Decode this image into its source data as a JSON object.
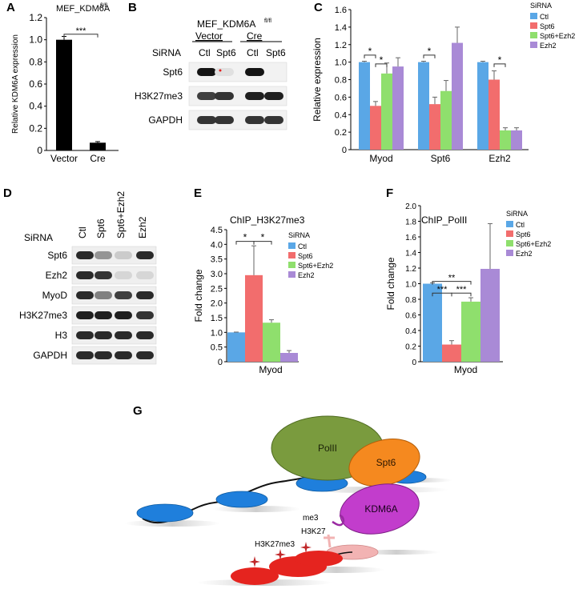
{
  "panels": {
    "A": "A",
    "B": "B",
    "C": "C",
    "D": "D",
    "E": "E",
    "F": "F",
    "G": "G"
  },
  "colors": {
    "ctl": "#5aa7e6",
    "spt6": "#f26d6d",
    "spt6_ezh2": "#8fdf6d",
    "ezh2": "#a98ad6",
    "black_bar": "#000000",
    "polII": "#7a9b3e",
    "spt6_protein": "#f5891f",
    "kdm6a": "#c23dcc",
    "nucleosome_blue": "#1f7fdc",
    "nucleosome_red": "#e5241f",
    "pink": "#f2b3b3",
    "star": "#c0282a"
  },
  "chart_data": [
    {
      "panel": "A",
      "type": "bar",
      "title": "MEF_KDM6A",
      "title_sup": "fl/fl",
      "ylabel": "Relative KDM6A expression",
      "categories": [
        "Vector",
        "Cre"
      ],
      "values": [
        1.0,
        0.07
      ],
      "errors": [
        0.03,
        0.01
      ],
      "ylim": [
        0,
        1.2
      ],
      "yticks": [
        "0",
        "0.2",
        "0.4",
        "0.6",
        "0.8",
        "1.0",
        "1.2"
      ],
      "significance": [
        {
          "from": 0,
          "to": 1,
          "label": "***"
        }
      ]
    },
    {
      "panel": "C",
      "type": "bar",
      "ylabel": "Relative expression",
      "legend_title": "SiRNA",
      "legend": "top-right",
      "categories": [
        "Myod",
        "Spt6",
        "Ezh2"
      ],
      "series": [
        {
          "name": "Ctl",
          "values": [
            1.0,
            1.0,
            1.0
          ],
          "errors": [
            0.01,
            0.01,
            0.01
          ]
        },
        {
          "name": "Spt6",
          "values": [
            0.5,
            0.52,
            0.8
          ],
          "errors": [
            0.05,
            0.08,
            0.1
          ]
        },
        {
          "name": "Spt6+Ezh2",
          "values": [
            0.87,
            0.67,
            0.22
          ],
          "errors": [
            0.12,
            0.12,
            0.03
          ]
        },
        {
          "name": "Ezh2",
          "values": [
            0.95,
            1.22,
            0.22
          ],
          "errors": [
            0.1,
            0.18,
            0.03
          ]
        }
      ],
      "ylim": [
        0,
        1.6
      ],
      "yticks": [
        "0",
        "0.2",
        "0.4",
        "0.6",
        "0.8",
        "1.0",
        "1.2",
        "1.4",
        "1.6"
      ],
      "significance": [
        {
          "category": 0,
          "from": 0,
          "to": 1,
          "label": "*"
        },
        {
          "category": 0,
          "from": 1,
          "to": 2,
          "label": "*"
        },
        {
          "category": 1,
          "from": 0,
          "to": 1,
          "label": "*"
        },
        {
          "category": 2,
          "from": 1,
          "to": 2,
          "label": "*"
        }
      ]
    },
    {
      "panel": "E",
      "type": "bar",
      "title": "ChIP_H3K27me3",
      "ylabel": "Fold change",
      "legend_title": "SiRNA",
      "legend": "top-right",
      "categories": [
        "Myod"
      ],
      "series": [
        {
          "name": "Ctl",
          "values": [
            1.0
          ],
          "errors": [
            0.01
          ]
        },
        {
          "name": "Spt6",
          "values": [
            2.95
          ],
          "errors": [
            1.0
          ]
        },
        {
          "name": "Spt6+Ezh2",
          "values": [
            1.33
          ],
          "errors": [
            0.1
          ]
        },
        {
          "name": "Ezh2",
          "values": [
            0.3
          ],
          "errors": [
            0.08
          ]
        }
      ],
      "ylim": [
        0,
        4.5
      ],
      "yticks": [
        "0",
        "0.5",
        "1.0",
        "1.5",
        "2.0",
        "2.5",
        "3.0",
        "3.5",
        "4.0",
        "4.5"
      ],
      "significance": [
        {
          "category": 0,
          "from": 0,
          "to": 1,
          "label": "*"
        },
        {
          "category": 0,
          "from": 1,
          "to": 2,
          "label": "*"
        }
      ]
    },
    {
      "panel": "F",
      "type": "bar",
      "title": "ChIP_PolII",
      "ylabel": "Fold change",
      "legend_title": "SiRNA",
      "legend": "top-right",
      "categories": [
        "Myod"
      ],
      "series": [
        {
          "name": "Ctl",
          "values": [
            1.0
          ],
          "errors": [
            0.01
          ]
        },
        {
          "name": "Spt6",
          "values": [
            0.22
          ],
          "errors": [
            0.05
          ]
        },
        {
          "name": "Spt6+Ezh2",
          "values": [
            0.77
          ],
          "errors": [
            0.05
          ]
        },
        {
          "name": "Ezh2",
          "values": [
            1.19
          ],
          "errors": [
            0.58
          ]
        }
      ],
      "ylim": [
        0,
        2.0
      ],
      "yticks": [
        "0",
        "0.2",
        "0.4",
        "0.6",
        "0.8",
        "1.0",
        "1.2",
        "1.4",
        "1.6",
        "1.8",
        "2.0"
      ],
      "significance": [
        {
          "category": 0,
          "from": 0,
          "to": 1,
          "label": "***"
        },
        {
          "category": 0,
          "from": 1,
          "to": 2,
          "label": "***"
        },
        {
          "category": 0,
          "from": 0,
          "to": 2,
          "label": "**"
        }
      ]
    }
  ],
  "blot_B": {
    "title": "MEF_KDM6A",
    "title_sup": "fl/fl",
    "groups": [
      "Vector",
      "Cre"
    ],
    "row_label": "SiRNA",
    "lanes": [
      "Ctl",
      "Spt6",
      "Ctl",
      "Spt6"
    ],
    "rows": [
      {
        "label": "Spt6",
        "intensity": [
          1.0,
          0.05,
          1.0,
          0.0
        ]
      },
      {
        "label": "H3K27me3",
        "intensity": [
          0.8,
          0.85,
          0.95,
          0.95
        ]
      },
      {
        "label": "GAPDH",
        "intensity": [
          0.85,
          0.85,
          0.85,
          0.85
        ]
      }
    ]
  },
  "blot_D": {
    "row_label": "SiRNA",
    "lanes": [
      "Ctl",
      "Spt6",
      "Spt6+Ezh2",
      "Ezh2"
    ],
    "rows": [
      {
        "label": "Spt6",
        "intensity": [
          0.9,
          0.4,
          0.15,
          0.9
        ]
      },
      {
        "label": "Ezh2",
        "intensity": [
          0.9,
          0.85,
          0.1,
          0.1
        ]
      },
      {
        "label": "MyoD",
        "intensity": [
          0.9,
          0.5,
          0.8,
          0.9
        ]
      },
      {
        "label": "H3K27me3",
        "intensity": [
          0.95,
          0.95,
          0.95,
          0.85
        ]
      },
      {
        "label": "H3",
        "intensity": [
          0.9,
          0.9,
          0.9,
          0.9
        ]
      },
      {
        "label": "GAPDH",
        "intensity": [
          0.9,
          0.9,
          0.9,
          0.9
        ]
      }
    ]
  },
  "diagram_G": {
    "polII": "PolII",
    "spt6": "Spt6",
    "kdm6a": "KDM6A",
    "me3": "me3",
    "h3k27": "H3K27",
    "h3k27me3": "H3K27me3"
  }
}
